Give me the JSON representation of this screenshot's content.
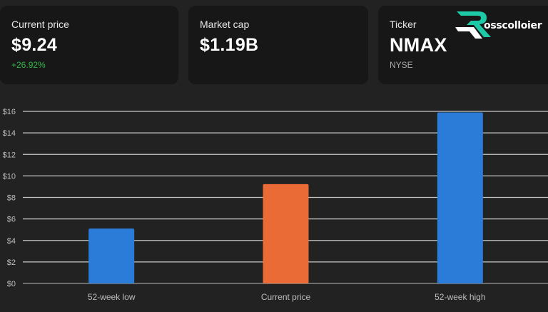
{
  "cards": [
    {
      "label": "Current price",
      "value": "$9.24",
      "sub": "+26.92%"
    },
    {
      "label": "Market cap",
      "value": "$1.19B",
      "sub": ""
    },
    {
      "label": "Ticker",
      "value": "NMAX",
      "sub": "NYSE"
    }
  ],
  "logo": {
    "text": "osscolloier"
  },
  "colors": {
    "background": "#222222",
    "card": "#171717",
    "positive": "#35b74a",
    "bar_blue": "#2b7bd8",
    "bar_orange": "#eb6b36",
    "logo_teal": "#1ec9a8"
  },
  "chart_data": {
    "type": "bar",
    "categories": [
      "52-week low",
      "Current price",
      "52-week high"
    ],
    "values": [
      5.1,
      9.24,
      15.9
    ],
    "bar_colors": [
      "#2b7bd8",
      "#eb6b36",
      "#2b7bd8"
    ],
    "ylim": [
      0,
      16
    ],
    "yticks": [
      0,
      2,
      4,
      6,
      8,
      10,
      12,
      14,
      16
    ],
    "ytick_labels": [
      "$0",
      "$2",
      "$4",
      "$6",
      "$8",
      "$10",
      "$12",
      "$14",
      "$16"
    ],
    "grid": true
  }
}
